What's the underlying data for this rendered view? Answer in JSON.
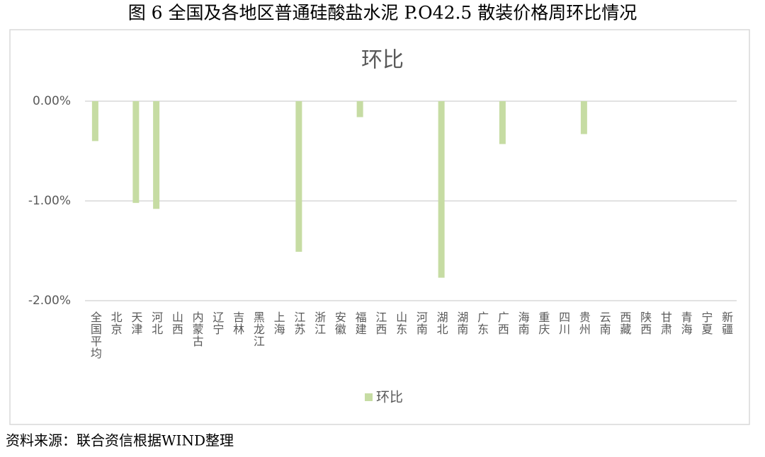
{
  "caption": "图 6 全国及各地区普通硅酸盐水泥 P.O42.5 散装价格周环比情况",
  "source": "资料来源：联合资信根据WIND整理",
  "chart_data": {
    "type": "bar",
    "title": "环比",
    "categories": [
      "全国平均",
      "北京",
      "天津",
      "河北",
      "山西",
      "内蒙古",
      "辽宁",
      "吉林",
      "黑龙江",
      "上海",
      "江苏",
      "浙江",
      "安徽",
      "福建",
      "江西",
      "山东",
      "河南",
      "湖北",
      "湖南",
      "广东",
      "广西",
      "海南",
      "重庆",
      "四川",
      "贵州",
      "云南",
      "西藏",
      "陕西",
      "甘肃",
      "青海",
      "宁夏",
      "新疆"
    ],
    "series": [
      {
        "name": "环比",
        "color": "#c6dca3",
        "values": [
          -0.4,
          0,
          -1.02,
          -1.08,
          0,
          0,
          0,
          0,
          0,
          0,
          -1.51,
          0,
          0,
          -0.16,
          0,
          0,
          0,
          -1.77,
          0,
          0,
          -0.43,
          0,
          0,
          0,
          -0.33,
          0,
          0,
          0,
          0,
          0,
          0,
          0
        ]
      }
    ],
    "ylim": [
      -2,
      0
    ],
    "yticks": [
      {
        "value": -2,
        "label": "-2.00%"
      },
      {
        "value": -1,
        "label": "-1.00%"
      },
      {
        "value": 0,
        "label": "0.00%"
      }
    ],
    "grid": true,
    "legend": "bottom"
  }
}
